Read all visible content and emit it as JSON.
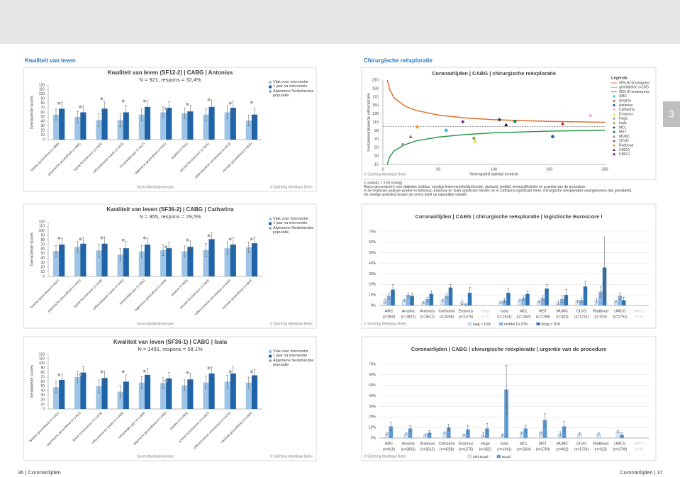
{
  "page": {
    "section_left": "Kwaliteit van leven",
    "section_right": "Chirurgische reëxploratie",
    "tab": "3",
    "footer_left": "36 | Coronairlijden",
    "footer_right": "Coronairlijden | 37"
  },
  "chart_data": [
    {
      "type": "bar",
      "legend": "right",
      "title": "Kwaliteit van leven (SF12-2) | CABG | Antonius",
      "subtitle": "N = 921, respons = 32,4%",
      "ylabel": "Gemiddelde scores",
      "xlabel": "Gezondheidsdimensies",
      "source": "© Stichting Meetbaar Beter",
      "ylim": [
        0,
        120
      ],
      "yticks": [
        0,
        10,
        20,
        30,
        40,
        50,
        60,
        70,
        80,
        90,
        100,
        110,
        120
      ],
      "grid": false,
      "categories": [
        "fysieke gezondheid (n=889)",
        "psychische gezondheid (n=885)",
        "fysiek functioneren (n=904)",
        "rolfunctioneren fysiek (n=910)",
        "lichamelijke pijn (n=917)",
        "algemene gezondheid (n=911)",
        "vitaliteit (n=911)",
        "sociaal functioneren (n=915)",
        "rolfunctioneren emotioneel (n=910)",
        "mentale gezondheid (n=909)"
      ],
      "series": [
        {
          "name": "Vlak voor interventie",
          "color": "#9dc3e6",
          "values": [
            55,
            50,
            43,
            43,
            55,
            60,
            58,
            55,
            60,
            42
          ],
          "errors": [
            12,
            12,
            14,
            14,
            13,
            12,
            12,
            14,
            14,
            12
          ]
        },
        {
          "name": "1 jaar na interventie",
          "color": "#1f64a8",
          "values": [
            68,
            60,
            68,
            60,
            72,
            70,
            62,
            72,
            70,
            55
          ],
          "errors": [
            14,
            14,
            15,
            15,
            14,
            13,
            13,
            15,
            15,
            14
          ]
        },
        {
          "name": "Algemene Nederlandse populatie",
          "color": "#a6a6a6",
          "marker": "dot",
          "values": [
            80,
            72,
            90,
            85,
            85,
            68,
            78,
            88,
            80,
            82
          ]
        }
      ]
    },
    {
      "type": "bar",
      "legend": "right",
      "title": "Kwaliteit van leven (SF36-2) | CABG | Catharina",
      "subtitle": "N = 955, respons = 29,5%",
      "ylabel": "Gemiddelde scores",
      "xlabel": "Gezondheidsdimensies",
      "source": "© Stichting Meetbaar Beter",
      "ylim": [
        0,
        120
      ],
      "yticks": [
        0,
        10,
        20,
        30,
        40,
        50,
        60,
        70,
        80,
        90,
        100,
        110,
        120
      ],
      "grid": false,
      "categories": [
        "fysieke gezondheid (n=937)",
        "psychische gezondheid (n=934)",
        "fysiek functioneren (n=948)",
        "rolfunctioneren fysiek (n=940)",
        "lichamelijke pijn (n=951)",
        "algemene gezondheid (n=949)",
        "vitaliteit (n=950)",
        "sociaal functioneren (n=953)",
        "rolfunctioneren emotioneel (n=942)",
        "mentale gezondheid (n=950)"
      ],
      "series": [
        {
          "name": "Vlak voor interventie",
          "color": "#9dc3e6",
          "values": [
            56,
            65,
            57,
            48,
            55,
            58,
            55,
            58,
            62,
            64
          ],
          "errors": [
            12,
            12,
            14,
            14,
            13,
            12,
            12,
            14,
            14,
            12
          ]
        },
        {
          "name": "1 jaar na interventie",
          "color": "#1f64a8",
          "values": [
            70,
            72,
            72,
            62,
            70,
            62,
            65,
            82,
            70,
            73
          ],
          "errors": [
            13,
            13,
            15,
            15,
            14,
            13,
            13,
            14,
            15,
            13
          ]
        },
        {
          "name": "Algemene Nederlandse populatie",
          "color": "#a6a6a6",
          "marker": "dot",
          "values": [
            84,
            82,
            85,
            80,
            85,
            65,
            80,
            90,
            82,
            82
          ]
        }
      ]
    },
    {
      "type": "bar",
      "legend": "right",
      "title": "Kwaliteit van leven (SF36-1) | CABG | Isala",
      "subtitle": "N = 1491, respons = 58,1%",
      "ylabel": "Gemiddelde scores",
      "xlabel": "Gezondheidsdimensies",
      "source": "© Stichting Meetbaar Beter",
      "ylim": [
        0,
        120
      ],
      "yticks": [
        0,
        10,
        20,
        30,
        40,
        50,
        60,
        70,
        80,
        90,
        100,
        110,
        120
      ],
      "grid": false,
      "categories": [
        "fysieke gezondheid (n=1462)",
        "psychische gezondheid (n=1462)",
        "fysiek functioneren (n=1478)",
        "rolfunctioneren fysiek (n=1468)",
        "lichamelijke pijn (n=1485)",
        "algemene gezondheid (n=1480)",
        "vitaliteit (n=1483)",
        "sociaal functioneren (n=1487)",
        "rolfunctioneren emotioneel (n=1470)",
        "mentale gezondheid (n=1483)"
      ],
      "series": [
        {
          "name": "Vlak voor interventie",
          "color": "#9dc3e6",
          "values": [
            48,
            70,
            50,
            38,
            58,
            57,
            52,
            58,
            60,
            58
          ],
          "errors": [
            12,
            12,
            14,
            14,
            13,
            12,
            12,
            14,
            14,
            12
          ]
        },
        {
          "name": "1 jaar na interventie",
          "color": "#1f64a8",
          "values": [
            64,
            80,
            68,
            60,
            75,
            67,
            65,
            78,
            78,
            74
          ],
          "errors": [
            13,
            13,
            15,
            15,
            14,
            13,
            13,
            14,
            15,
            13
          ]
        },
        {
          "name": "Algemene Nederlandse populatie",
          "color": "#a6a6a6",
          "marker": "dot",
          "values": [
            75,
            75,
            82,
            82,
            83,
            62,
            80,
            90,
            82,
            82
          ]
        }
      ]
    },
    {
      "type": "scatter",
      "title": "Coronairlijden | CABG | chirurgische reëxploratie",
      "ylabel": "Gestandaardiseerde uitkomstratio",
      "xlabel": "Voorspeld aantal events",
      "source": "© Stichting Meetbaar Beter",
      "legend_title": "Legenda",
      "xlim": [
        0,
        200
      ],
      "xticks": [
        0,
        50,
        100,
        150,
        200
      ],
      "ylim": [
        10,
        210
      ],
      "yticks": [
        10,
        30,
        50,
        70,
        90,
        110,
        130,
        150,
        170,
        190,
        210
      ],
      "lines": [
        {
          "name": "95% BI bovengrens",
          "color": "#e0702a",
          "x": [
            4,
            6,
            10,
            20,
            30,
            50,
            75,
            100,
            150,
            200
          ],
          "values": [
            210,
            188,
            168,
            148,
            138,
            127,
            120,
            116,
            112,
            110
          ]
        },
        {
          "name": "gemiddelde (=100)",
          "color": "#8c8c8c",
          "dash": true,
          "x": [
            0,
            200
          ],
          "values": [
            100,
            100
          ]
        },
        {
          "name": "95% BI ondergrens",
          "color": "#2a9a4a",
          "x": [
            4,
            6,
            10,
            20,
            30,
            50,
            75,
            100,
            150,
            200
          ],
          "values": [
            10,
            28,
            42,
            57,
            66,
            75,
            81,
            85,
            89,
            91
          ]
        }
      ],
      "series": [
        {
          "name": "AMC",
          "color": "#2ec4e0",
          "marker": "circle",
          "x": [
            57
          ],
          "values": [
            91
          ]
        },
        {
          "name": "Amphia",
          "color": "#c0282d",
          "marker": "triangle",
          "x": [
            162
          ],
          "values": [
            107
          ]
        },
        {
          "name": "Antonius",
          "color": "#1f5fa8",
          "marker": "circle",
          "x": [
            153
          ],
          "values": [
            76
          ]
        },
        {
          "name": "Catharina",
          "color": "#f4a6c8",
          "marker": "diamond",
          "x": [
            187
          ],
          "values": [
            126
          ]
        },
        {
          "name": "Erasmus",
          "color": "#f2d027",
          "marker": "triangle",
          "x": [
            83
          ],
          "values": [
            65
          ]
        },
        {
          "name": "Haga",
          "color": "#a0a0a0",
          "marker": "circle",
          "x": [
            18
          ],
          "values": [
            57
          ]
        },
        {
          "name": "Isala",
          "color": "#6aaa3a",
          "marker": "diamond",
          "x": [
            82
          ],
          "values": [
            72
          ]
        },
        {
          "name": "MCL",
          "color": "#1f3864",
          "marker": "diamond",
          "x": [
            105
          ],
          "values": [
            116
          ]
        },
        {
          "name": "MST",
          "color": "#17866a",
          "marker": "circle",
          "x": [
            119
          ],
          "values": [
            112
          ]
        },
        {
          "name": "MUMC",
          "color": "#8a7a3a",
          "marker": "triangle",
          "x": [
            25
          ],
          "values": [
            76
          ]
        },
        {
          "name": "OLVG",
          "color": "#7030a0",
          "marker": "diamond",
          "x": [
            72
          ],
          "values": [
            111
          ]
        },
        {
          "name": "Radboud",
          "color": "#e8a33d",
          "marker": "circle",
          "x": [
            31
          ],
          "values": [
            99
          ]
        },
        {
          "name": "UMCG",
          "color": "#111111",
          "marker": "triangle",
          "x": [
            111
          ],
          "values": [
            104
          ]
        },
        {
          "name": "UMCU",
          "color": "#8b1a4a",
          "marker": "circle",
          "x": [
            null
          ],
          "values": [
            null
          ]
        }
      ],
      "notes": [
        "C-statistic = 0,63 (matig)",
        "Risico-gecorrigeerd voor diabetes mellitus, ernstige linkerventrikeldysfunctie, geslacht, leeftijd, nierinsufficiëntie en urgentie van de procedure.",
        "In de regressie-analyse worden in Antonius, Erasmus en Isala significant minder, en in Catharina significant meer, chirurgische reëxploraties waargenomen dan gemiddeld.",
        "De overige spreiding tussen de centra duidt op natuurlijke variatie."
      ]
    },
    {
      "type": "bar",
      "legend": "bottom",
      "title": "Coronairlijden | CABG | chirurgische reëxploratie | logistische Euroscore I",
      "source": "© Stichting Meetbaar Beter",
      "ylim": [
        0,
        70
      ],
      "yticks": [
        {
          "value": 0,
          "label": "0%"
        },
        {
          "value": 10,
          "label": "10%"
        },
        {
          "value": 20,
          "label": "20%"
        },
        {
          "value": 30,
          "label": "30%"
        },
        {
          "value": 40,
          "label": "40%"
        },
        {
          "value": 50,
          "label": "50%"
        },
        {
          "value": 60,
          "label": "60%"
        },
        {
          "value": 70,
          "label": "70%"
        }
      ],
      "grid": true,
      "categories": [
        "AMC",
        "Amphia",
        "Antonius",
        "Catharina",
        "Erasmus",
        "Haga",
        "Isala",
        "MCL",
        "MST",
        "MUMC",
        "OLVG",
        "Radboud",
        "UMCG",
        "UMCU"
      ],
      "category_notes": [
        "(n=860)",
        "(n=3822)",
        "(n=3612)",
        "(n=4258)",
        "(n=1575)",
        "(n=0)",
        "(n=1941)",
        "(n=2364)",
        "(n=2769)",
        "(n=402)",
        "(n=1724)",
        "(n=913)",
        "(n=1791)",
        "(n=0)"
      ],
      "series": [
        {
          "name": "laag < 10%",
          "color": "#d6e6f5",
          "values": [
            4,
            5,
            3,
            5,
            3,
            null,
            3,
            5,
            4,
            3,
            4,
            5,
            4,
            null
          ],
          "errors": [
            2,
            1,
            1,
            1,
            2,
            null,
            1,
            1,
            1,
            2,
            1,
            2,
            1,
            null
          ]
        },
        {
          "name": "middel 10-20%",
          "color": "#8db4e2",
          "values": [
            9,
            10,
            6,
            9,
            1,
            null,
            5,
            7,
            7,
            6,
            5,
            13,
            9,
            null
          ],
          "errors": [
            3,
            2,
            2,
            2,
            1,
            null,
            2,
            2,
            2,
            3,
            2,
            5,
            3,
            null
          ]
        },
        {
          "name": "hoog > 20%",
          "color": "#2e75b6",
          "values": [
            15,
            9,
            11,
            17,
            12,
            null,
            12,
            11,
            16,
            10,
            18,
            36,
            5,
            null
          ],
          "errors": [
            5,
            3,
            3,
            3,
            5,
            null,
            4,
            3,
            4,
            5,
            5,
            29,
            3,
            null
          ]
        }
      ]
    },
    {
      "type": "bar",
      "legend": "bottom",
      "title": "Coronairlijden | CABG | chirurgische reëxploratie | urgentie van de procedure",
      "source": "© Stichting Meetbaar Beter",
      "ylim": [
        0,
        70
      ],
      "yticks": [
        {
          "value": 0,
          "label": "0%"
        },
        {
          "value": 10,
          "label": "10%"
        },
        {
          "value": 20,
          "label": "20%"
        },
        {
          "value": 30,
          "label": "30%"
        },
        {
          "value": 40,
          "label": "40%"
        },
        {
          "value": 50,
          "label": "50%"
        },
        {
          "value": 60,
          "label": "60%"
        },
        {
          "value": 70,
          "label": "70%"
        }
      ],
      "grid": true,
      "categories": [
        "AMC",
        "Amphia",
        "Antonius",
        "Catharina",
        "Erasmus",
        "Haga",
        "Isala",
        "MCL",
        "MST",
        "MUMC",
        "OLVG",
        "Radboud",
        "UMCG",
        "UMCU"
      ],
      "category_notes": [
        "(n=810)",
        "(n=3853)",
        "(n=3612)",
        "(n=4258)",
        "(n=1575)",
        "(n=362)",
        "(n=1941)",
        "(n=2364)",
        "(n=2769)",
        "(n=402)",
        "(n=1724)",
        "(n=913)",
        "(n=1790)",
        "(n=0)"
      ],
      "series": [
        {
          "name": "niet acuut",
          "color": "#d6e6f5",
          "values": [
            4,
            4,
            3,
            5,
            3,
            3,
            3,
            5,
            5,
            4,
            4,
            4,
            6,
            null
          ],
          "errors": [
            1,
            1,
            1,
            1,
            1,
            2,
            1,
            1,
            1,
            2,
            1,
            1,
            1,
            null
          ]
        },
        {
          "name": "acuut",
          "color": "#5b9bd5",
          "values": [
            11,
            9,
            5,
            10,
            8,
            9,
            46,
            9,
            17,
            11,
            null,
            null,
            3,
            null
          ],
          "errors": [
            4,
            3,
            2,
            3,
            4,
            5,
            23,
            3,
            6,
            5,
            null,
            null,
            2,
            null
          ]
        }
      ]
    }
  ]
}
